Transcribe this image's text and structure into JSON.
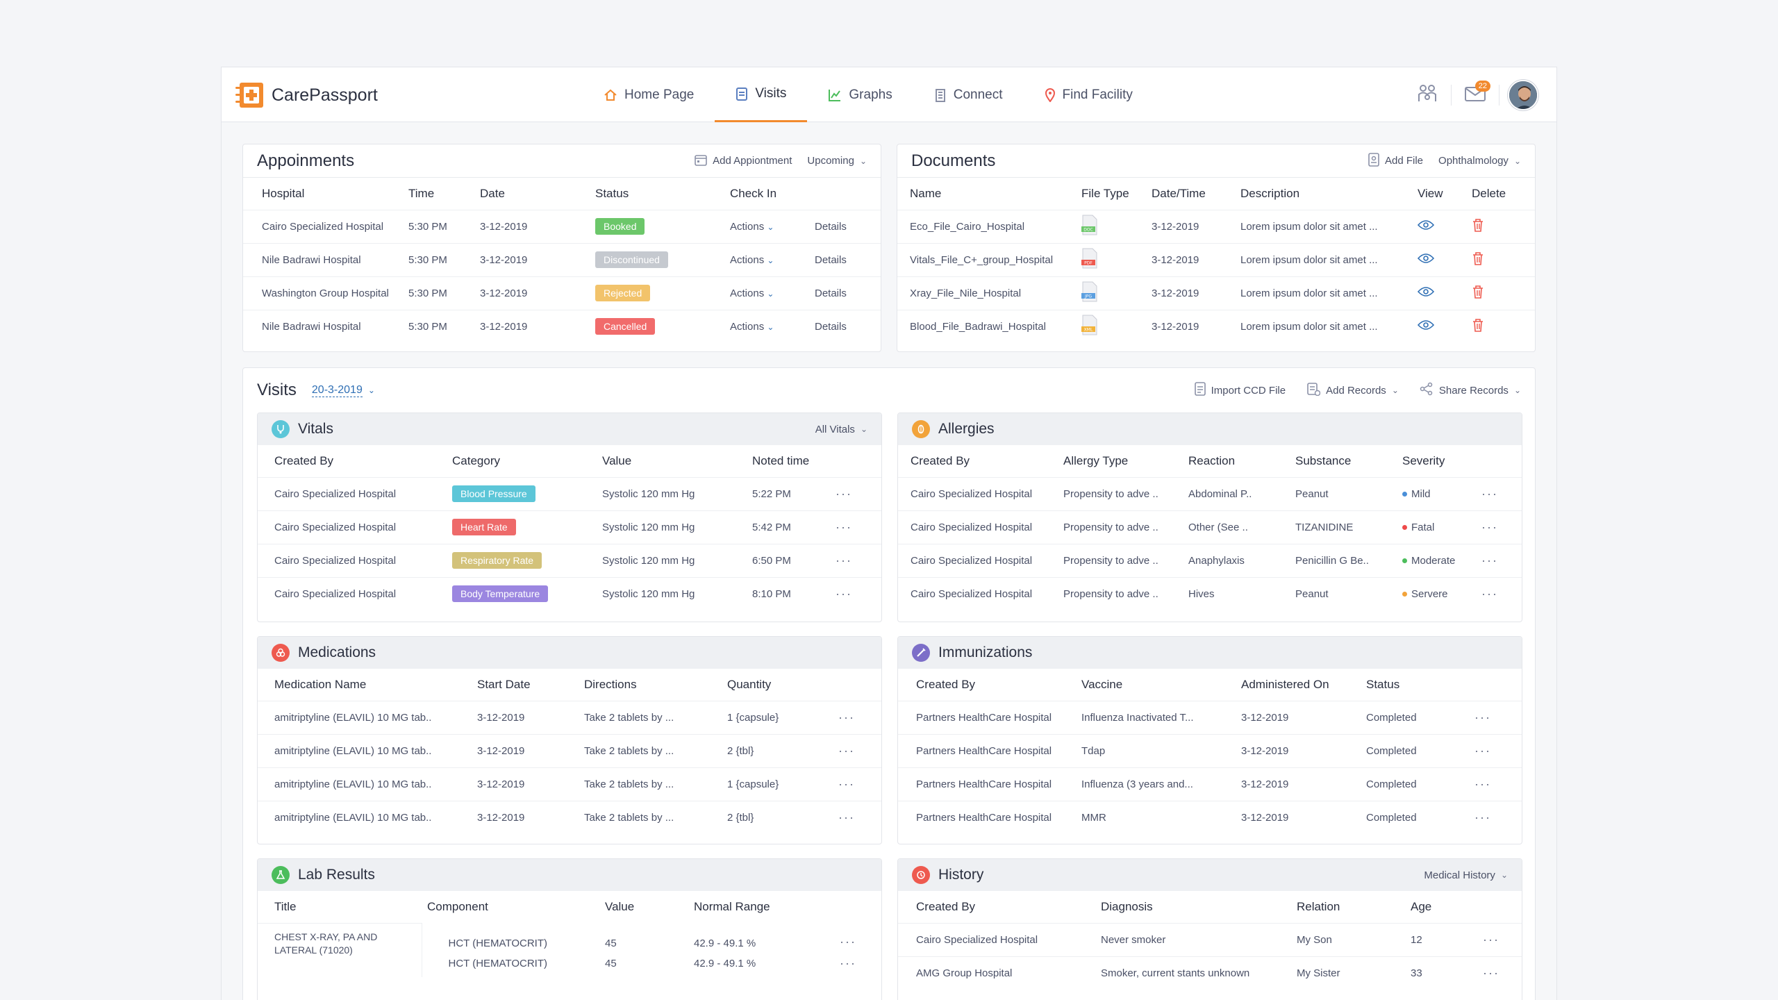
{
  "app": {
    "name": "CarePassport"
  },
  "nav": {
    "tabs": [
      {
        "label": "Home Page"
      },
      {
        "label": "Visits"
      },
      {
        "label": "Graphs"
      },
      {
        "label": "Connect"
      },
      {
        "label": "Find Facility"
      }
    ],
    "mail_badge": "22"
  },
  "appointments": {
    "title": "Appoinments",
    "add_label": "Add Appiontment",
    "filter": "Upcoming",
    "headers": [
      "Hospital",
      "Time",
      "Date",
      "Status",
      "Check In",
      ""
    ],
    "rows": [
      {
        "hospital": "Cairo Specialized Hospital",
        "time": "5:30 PM",
        "date": "3-12-2019",
        "status": "Booked",
        "status_color": "#6cc76a",
        "actions": "Actions",
        "details": "Details"
      },
      {
        "hospital": "Nile Badrawi Hospital",
        "time": "5:30 PM",
        "date": "3-12-2019",
        "status": "Discontinued",
        "status_color": "#c5c9cf",
        "actions": "Actions",
        "details": "Details"
      },
      {
        "hospital": "Washington Group Hospital",
        "time": "5:30 PM",
        "date": "3-12-2019",
        "status": "Rejected",
        "status_color": "#f2c36b",
        "actions": "Actions",
        "details": "Details"
      },
      {
        "hospital": "Nile Badrawi Hospital",
        "time": "5:30 PM",
        "date": "3-12-2019",
        "status": "Cancelled",
        "status_color": "#f16b6b",
        "actions": "Actions",
        "details": "Details"
      }
    ]
  },
  "documents": {
    "title": "Documents",
    "add_label": "Add File",
    "filter": "Ophthalmology",
    "headers": [
      "Name",
      "File Type",
      "Date/Time",
      "Description",
      "View",
      "Delete"
    ],
    "rows": [
      {
        "name": "Eco_File_Cairo_Hospital",
        "type": "DOC",
        "type_color": "#6cc76a",
        "date": "3-12-2019",
        "desc": "Lorem ipsum dolor sit amet ..."
      },
      {
        "name": "Vitals_File_C+_group_Hospital",
        "type": "PDF",
        "type_color": "#ee5a4f",
        "date": "3-12-2019",
        "desc": "Lorem ipsum dolor sit amet ..."
      },
      {
        "name": "Xray_File_Nile_Hospital",
        "type": "JPG",
        "type_color": "#5b9fe0",
        "date": "3-12-2019",
        "desc": "Lorem ipsum dolor sit amet ..."
      },
      {
        "name": "Blood_File_Badrawi_Hospital",
        "type": "XML",
        "type_color": "#f2b33a",
        "date": "3-12-2019",
        "desc": "Lorem ipsum dolor sit amet ..."
      }
    ]
  },
  "visits": {
    "title": "Visits",
    "date": "20-3-2019",
    "import_label": "Import CCD File",
    "add_records": "Add Records",
    "share_records": "Share Records"
  },
  "vitals": {
    "title": "Vitals",
    "filter": "All Vitals",
    "headers": [
      "Created By",
      "Category",
      "Value",
      "Noted time",
      ""
    ],
    "rows": [
      {
        "by": "Cairo Specialized Hospital",
        "category": "Blood Pressure",
        "cat_color": "#5cc6d8",
        "value": "Systolic 120 mm Hg",
        "time": "5:22 PM"
      },
      {
        "by": "Cairo Specialized Hospital",
        "category": "Heart Rate",
        "cat_color": "#ee6a6a",
        "value": "Systolic 120 mm Hg",
        "time": "5:42 PM"
      },
      {
        "by": "Cairo Specialized Hospital",
        "category": "Respiratory Rate",
        "cat_color": "#d3c27a",
        "value": "Systolic 120 mm Hg",
        "time": "6:50 PM"
      },
      {
        "by": "Cairo Specialized Hospital",
        "category": "Body Temperature",
        "cat_color": "#9b86e0",
        "value": "Systolic 120 mm Hg",
        "time": "8:10 PM"
      }
    ]
  },
  "allergies": {
    "title": "Allergies",
    "headers": [
      "Created By",
      "Allergy Type",
      "Reaction",
      "Substance",
      "Severity",
      ""
    ],
    "rows": [
      {
        "by": "Cairo Specialized Hospital",
        "type": "Propensity to adve ..",
        "reaction": "Abdominal P..",
        "substance": "Peanut",
        "severity": "Mild",
        "sev_color": "#4a8fd8"
      },
      {
        "by": "Cairo Specialized Hospital",
        "type": "Propensity to adve ..",
        "reaction": "Other (See ..",
        "substance": "TIZANIDINE",
        "severity": "Fatal",
        "sev_color": "#ee4a4a"
      },
      {
        "by": "Cairo Specialized Hospital",
        "type": "Propensity to adve ..",
        "reaction": "Anaphylaxis",
        "substance": "Penicillin G Be..",
        "severity": "Moderate",
        "sev_color": "#4cbd5c"
      },
      {
        "by": "Cairo Specialized Hospital",
        "type": "Propensity to adve ..",
        "reaction": "Hives",
        "substance": "Peanut",
        "severity": "Servere",
        "sev_color": "#f2a33a"
      }
    ]
  },
  "medications": {
    "title": "Medications",
    "headers": [
      "Medication Name",
      "Start Date",
      "Directions",
      "Quantity",
      ""
    ],
    "rows": [
      {
        "name": "amitriptyline (ELAVIL) 10 MG tab..",
        "start": "3-12-2019",
        "dir": "Take 2 tablets by ...",
        "qty": "1 {capsule}"
      },
      {
        "name": "amitriptyline (ELAVIL) 10 MG tab..",
        "start": "3-12-2019",
        "dir": "Take 2 tablets by ...",
        "qty": "2 {tbl}"
      },
      {
        "name": "amitriptyline (ELAVIL) 10 MG tab..",
        "start": "3-12-2019",
        "dir": "Take 2 tablets by ...",
        "qty": "1 {capsule}"
      },
      {
        "name": "amitriptyline (ELAVIL) 10 MG tab..",
        "start": "3-12-2019",
        "dir": "Take 2 tablets by ...",
        "qty": "2 {tbl}"
      }
    ]
  },
  "immunizations": {
    "title": "Immunizations",
    "headers": [
      "Created By",
      "Vaccine",
      "Administered On",
      "Status",
      ""
    ],
    "rows": [
      {
        "by": "Partners HealthCare Hospital",
        "vaccine": "Influenza Inactivated T...",
        "date": "3-12-2019",
        "status": "Completed"
      },
      {
        "by": "Partners HealthCare Hospital",
        "vaccine": "Tdap",
        "date": "3-12-2019",
        "status": "Completed"
      },
      {
        "by": "Partners HealthCare Hospital",
        "vaccine": "Influenza (3 years and...",
        "date": "3-12-2019",
        "status": "Completed"
      },
      {
        "by": "Partners HealthCare Hospital",
        "vaccine": "MMR",
        "date": "3-12-2019",
        "status": "Completed"
      }
    ]
  },
  "lab": {
    "title": "Lab Results",
    "headers": [
      "Title",
      "Component",
      "Value",
      "Normal Range",
      ""
    ],
    "group_title": "CHEST X-RAY, PA AND LATERAL (71020)",
    "rows": [
      {
        "component": "HCT (HEMATOCRIT)",
        "value": "45",
        "range": "42.9 - 49.1 %"
      },
      {
        "component": "HCT (HEMATOCRIT)",
        "value": "45",
        "range": "42.9 - 49.1 %"
      }
    ]
  },
  "history": {
    "title": "History",
    "filter": "Medical History",
    "headers": [
      "Created By",
      "Diagnosis",
      "Relation",
      "Age",
      ""
    ],
    "rows": [
      {
        "by": "Cairo Specialized Hospital",
        "diag": "Never smoker",
        "rel": "My Son",
        "age": "12"
      },
      {
        "by": "AMG Group Hospital",
        "diag": "Smoker, current stants unknown",
        "rel": "My Sister",
        "age": "33"
      }
    ]
  }
}
